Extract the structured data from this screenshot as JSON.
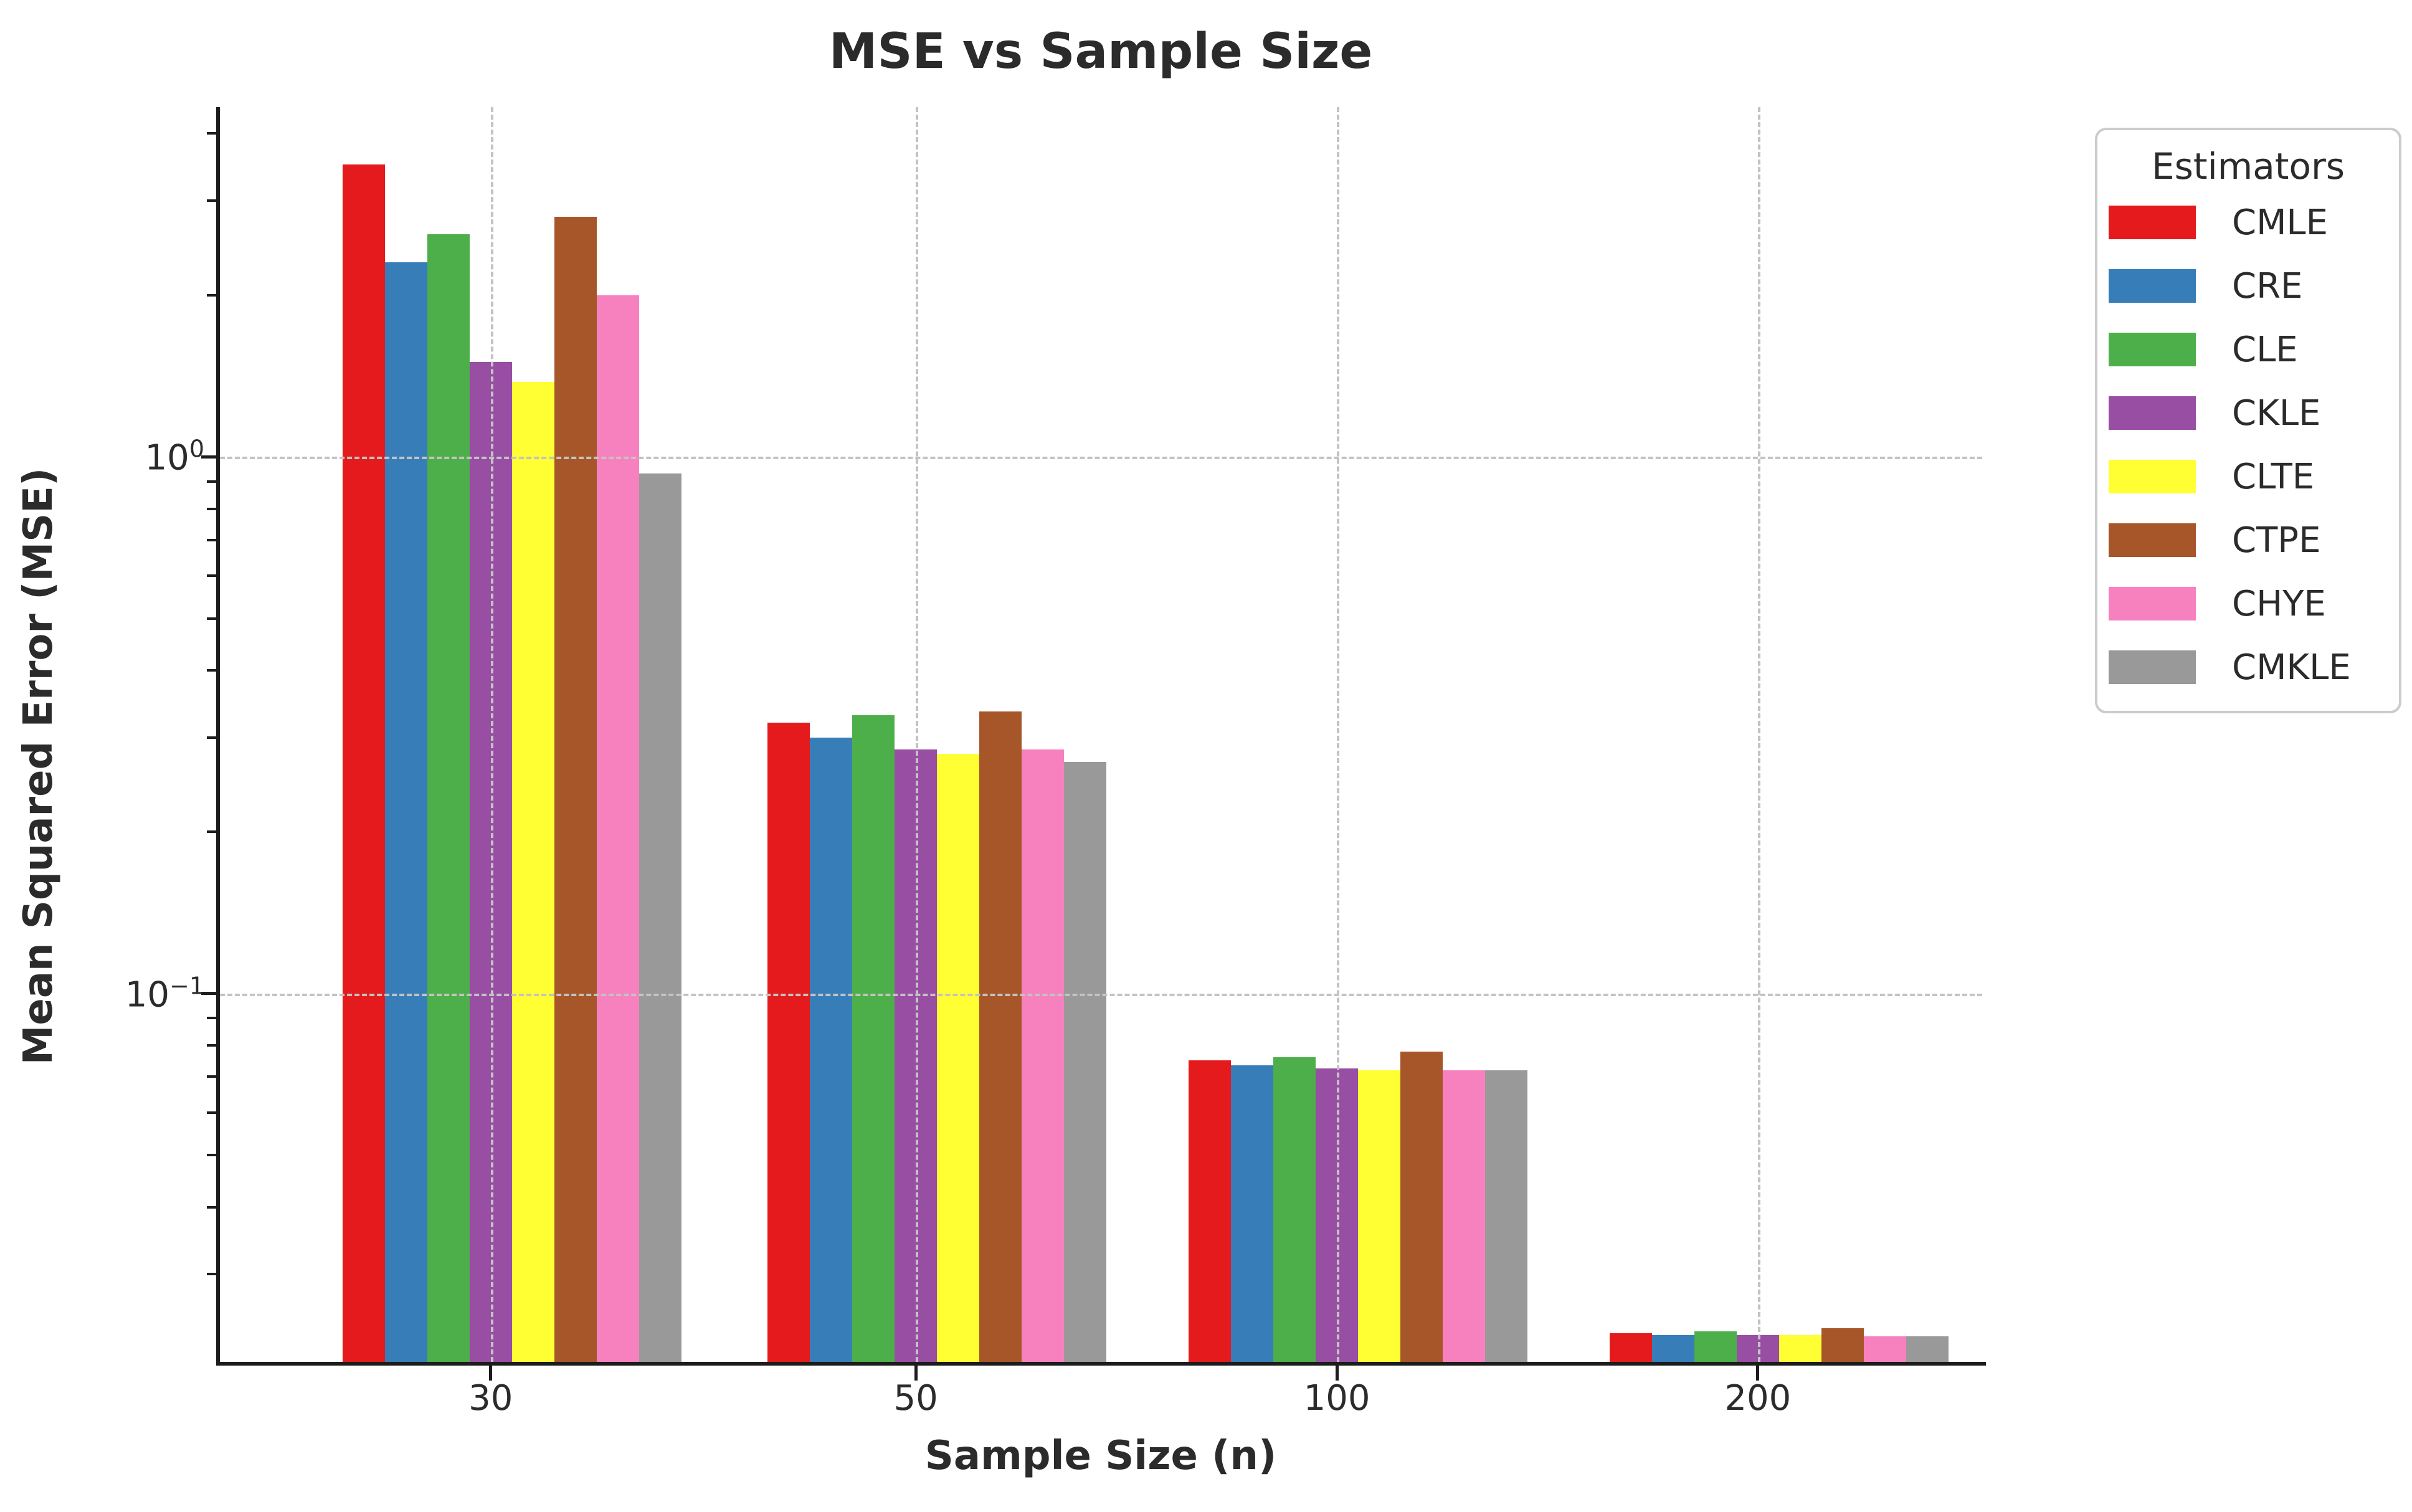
{
  "title": "MSE vs Sample Size",
  "axes": {
    "xlabel": "Sample Size (n)",
    "ylabel": "Mean Squared Error (MSE)"
  },
  "legend": {
    "title": "Estimators",
    "entries": [
      "CMLE",
      "CRE",
      "CLE",
      "CKLE",
      "CLTE",
      "CTPE",
      "CHYE",
      "CMKLE"
    ]
  },
  "colors": {
    "CMLE": "#e41a1c",
    "CRE": "#377eb8",
    "CLE": "#4daf4a",
    "CKLE": "#984ea3",
    "CLTE": "#ffff33",
    "CTPE": "#a65628",
    "CHYE": "#f781bf",
    "CMKLE": "#999999",
    "spine": "#1c1c1c",
    "grid": "#c3c3c3",
    "text": "#2b2b2b"
  },
  "chart_data": {
    "type": "bar",
    "title": "MSE vs Sample Size",
    "xlabel": "Sample Size (n)",
    "ylabel": "Mean Squared Error (MSE)",
    "categories": [
      "30",
      "50",
      "100",
      "200"
    ],
    "series": [
      {
        "name": "CMLE",
        "color": "#e41a1c",
        "values": [
          3.5,
          0.32,
          0.075,
          0.0233
        ]
      },
      {
        "name": "CRE",
        "color": "#377eb8",
        "values": [
          2.3,
          0.3,
          0.0735,
          0.0231
        ]
      },
      {
        "name": "CLE",
        "color": "#4daf4a",
        "values": [
          2.6,
          0.33,
          0.076,
          0.0235
        ]
      },
      {
        "name": "CKLE",
        "color": "#984ea3",
        "values": [
          1.5,
          0.285,
          0.0725,
          0.0231
        ]
      },
      {
        "name": "CLTE",
        "color": "#ffff33",
        "values": [
          1.38,
          0.28,
          0.072,
          0.0231
        ]
      },
      {
        "name": "CTPE",
        "color": "#a65628",
        "values": [
          2.8,
          0.335,
          0.078,
          0.0238
        ]
      },
      {
        "name": "CHYE",
        "color": "#f781bf",
        "values": [
          2.0,
          0.285,
          0.072,
          0.023
        ]
      },
      {
        "name": "CMKLE",
        "color": "#999999",
        "values": [
          0.93,
          0.27,
          0.072,
          0.023
        ]
      }
    ],
    "yscale": "log",
    "ylim": [
      0.0206,
      4.48
    ],
    "yticks": [
      {
        "base": "10",
        "exp": "0",
        "value": 1.0
      },
      {
        "base": "10",
        "exp": "−1",
        "value": 0.1
      }
    ],
    "grid": "dashed gridlines at major x categories and major y ticks, drawn above bars",
    "legend_title": "Estimators",
    "legend_position": "outside upper right"
  }
}
